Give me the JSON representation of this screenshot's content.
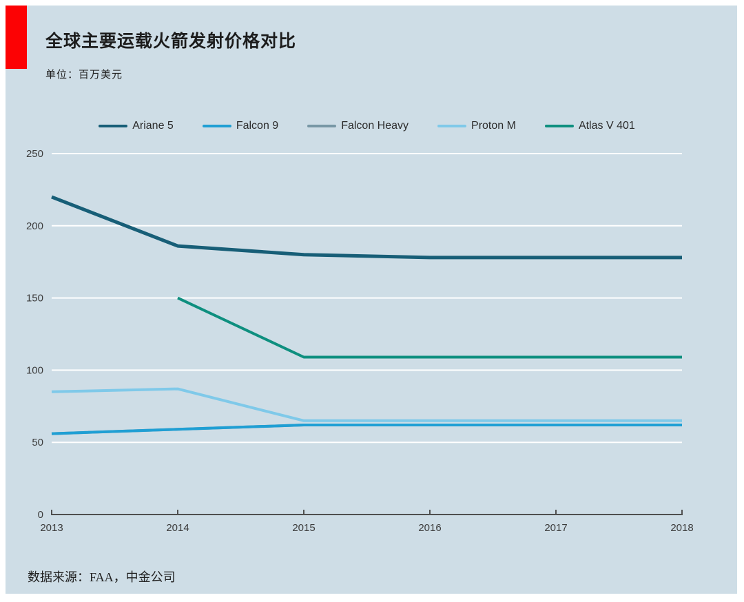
{
  "header": {
    "title": "全球主要运载火箭发射价格对比",
    "unit_label": "单位：百万美元"
  },
  "footer": {
    "source": "数据来源：FAA，中金公司"
  },
  "colors": {
    "accent_red": "#fc0204",
    "panel_background": "#cedde6",
    "gridline": "#ffffff",
    "axis": "#4f4f4f",
    "title_text": "#1c1c1c",
    "label_text": "#3c3c3c"
  },
  "chart_data": {
    "type": "line",
    "title": "全球主要运载火箭发射价格对比",
    "ylabel": "百万美元",
    "x": [
      2013,
      2014,
      2015,
      2016,
      2017,
      2018
    ],
    "ylim": [
      0,
      250
    ],
    "yticks": [
      0,
      50,
      100,
      150,
      200,
      250
    ],
    "grid": true,
    "legend_position": "top",
    "series": [
      {
        "name": "Ariane 5",
        "color": "#175e77",
        "values": [
          220,
          186,
          180,
          178,
          178,
          178
        ]
      },
      {
        "name": "Falcon 9",
        "color": "#1f9fd4",
        "values": [
          56,
          59,
          62,
          62,
          62,
          62
        ]
      },
      {
        "name": "Falcon Heavy",
        "color": "#7897a5",
        "values": [
          56,
          59,
          62,
          62,
          62,
          62
        ]
      },
      {
        "name": "Proton M",
        "color": "#7fc9e9",
        "values": [
          85,
          87,
          65,
          65,
          65,
          65
        ]
      },
      {
        "name": "Atlas V 401",
        "color": "#0e8f7f",
        "values": [
          null,
          150,
          109,
          109,
          109,
          109
        ]
      }
    ]
  }
}
